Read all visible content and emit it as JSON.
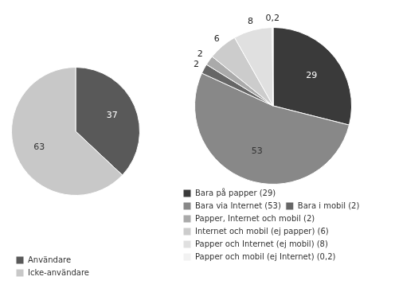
{
  "chart_data": [
    {
      "type": "pie",
      "categories": [
        "Användare",
        "Icke-användare"
      ],
      "values": [
        37,
        63
      ],
      "colors": [
        "#595959",
        "#c8c8c8"
      ],
      "data_labels": true,
      "legend": "bottom"
    },
    {
      "type": "pie",
      "categories": [
        "Bara på papper (29)",
        "Bara via Internet (53)",
        "Bara i mobil (2)",
        "Papper, Internet och mobil (2)",
        "Internet och mobil (ej papper) (6)",
        "Papper och Internet (ej mobil) (8)",
        "Papper och mobil (ej Internet) (0,2)"
      ],
      "values": [
        29,
        53,
        2,
        2,
        6,
        8,
        0.2
      ],
      "value_labels": [
        "29",
        "53",
        "2",
        "2",
        "6",
        "8",
        "0,2"
      ],
      "colors": [
        "#3a3a3a",
        "#888888",
        "#666666",
        "#aaaaaa",
        "#cccccc",
        "#e0e0e0",
        "#f2f2f2"
      ],
      "data_labels": true,
      "legend": "bottom"
    }
  ]
}
